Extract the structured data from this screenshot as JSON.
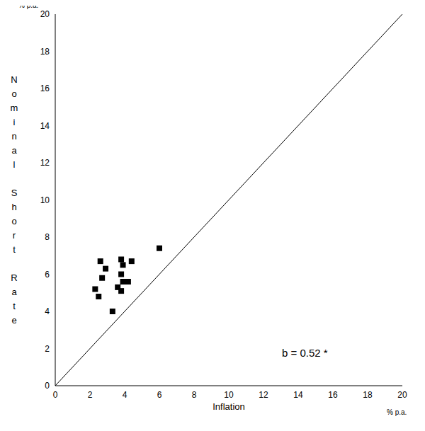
{
  "chart_data": {
    "type": "scatter",
    "x_label": "Inflation",
    "y_label": "Nominal Short Rate",
    "x_unit_label": "% p.a.",
    "y_unit_label": "% p.a.",
    "annotation": "b = 0.52 *",
    "x": [
      2.6,
      2.9,
      2.7,
      2.3,
      2.5,
      3.3,
      3.8,
      3.9,
      4.4,
      3.8,
      3.9,
      4.2,
      3.6,
      3.8,
      6.0
    ],
    "values": [
      6.7,
      6.3,
      5.8,
      5.2,
      4.8,
      4.0,
      6.8,
      6.5,
      6.7,
      6.0,
      5.6,
      5.6,
      5.3,
      5.1,
      7.4
    ],
    "color": "#000000",
    "marker": "square",
    "xlim": [
      0,
      20
    ],
    "ylim": [
      0,
      20
    ],
    "xticks": [
      0,
      2,
      4,
      6,
      8,
      10,
      12,
      14,
      16,
      18,
      20
    ],
    "yticks": [
      0,
      2,
      4,
      6,
      8,
      10,
      12,
      14,
      16,
      18,
      20
    ],
    "grid": false
  }
}
